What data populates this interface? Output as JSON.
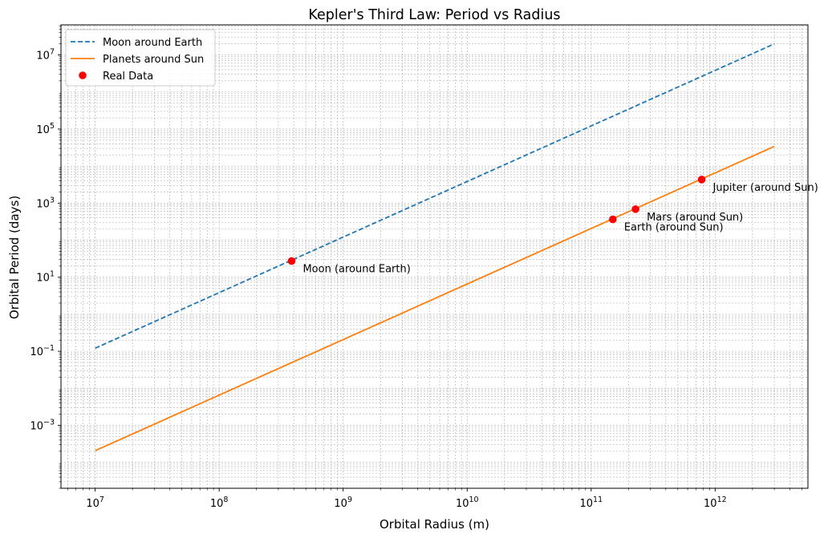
{
  "chart_data": {
    "type": "line",
    "title": "Kepler's Third Law: Period vs Radius",
    "xlabel": "Orbital Radius (m)",
    "ylabel": "Orbital Period (days)",
    "xscale": "log",
    "yscale": "log",
    "xlim": [
      5300000.0,
      5600000000000.0
    ],
    "ylim": [
      2e-05,
      65000000.0
    ],
    "x_ticks": [
      {
        "value": 10000000.0,
        "base": "10",
        "exp": "7"
      },
      {
        "value": 100000000.0,
        "base": "10",
        "exp": "8"
      },
      {
        "value": 1000000000.0,
        "base": "10",
        "exp": "9"
      },
      {
        "value": 10000000000.0,
        "base": "10",
        "exp": "10"
      },
      {
        "value": 100000000000.0,
        "base": "10",
        "exp": "11"
      },
      {
        "value": 1000000000000.0,
        "base": "10",
        "exp": "12"
      }
    ],
    "y_ticks": [
      {
        "value": 0.001,
        "base": "10",
        "exp": "−3"
      },
      {
        "value": 0.1,
        "base": "10",
        "exp": "−1"
      },
      {
        "value": 10.0,
        "base": "10",
        "exp": "1"
      },
      {
        "value": 1000.0,
        "base": "10",
        "exp": "3"
      },
      {
        "value": 100000.0,
        "base": "10",
        "exp": "5"
      },
      {
        "value": 10000000.0,
        "base": "10",
        "exp": "7"
      }
    ],
    "grid": true,
    "legend_position": "top-left",
    "series": [
      {
        "name": "Moon around Earth",
        "style": "dashed",
        "color": "#1f77b4",
        "x": [
          10000000.0,
          3000000000000.0
        ],
        "y": [
          0.121,
          19900000.0
        ]
      },
      {
        "name": "Planets around Sun",
        "style": "solid",
        "color": "#ff7f0e",
        "x": [
          10000000.0,
          3000000000000.0
        ],
        "y": [
          0.000207,
          34000.0
        ]
      },
      {
        "name": "Real Data",
        "style": "markers",
        "color": "#ff0000",
        "points": [
          {
            "label": "Moon (around Earth)",
            "x": 384000000.0,
            "y": 27.3
          },
          {
            "label": "Earth (around Sun)",
            "x": 149600000000.0,
            "y": 365.25
          },
          {
            "label": "Mars (around Sun)",
            "x": 227900000000.0,
            "y": 687
          },
          {
            "label": "Jupiter (around Sun)",
            "x": 778500000000.0,
            "y": 4333
          }
        ]
      }
    ]
  }
}
